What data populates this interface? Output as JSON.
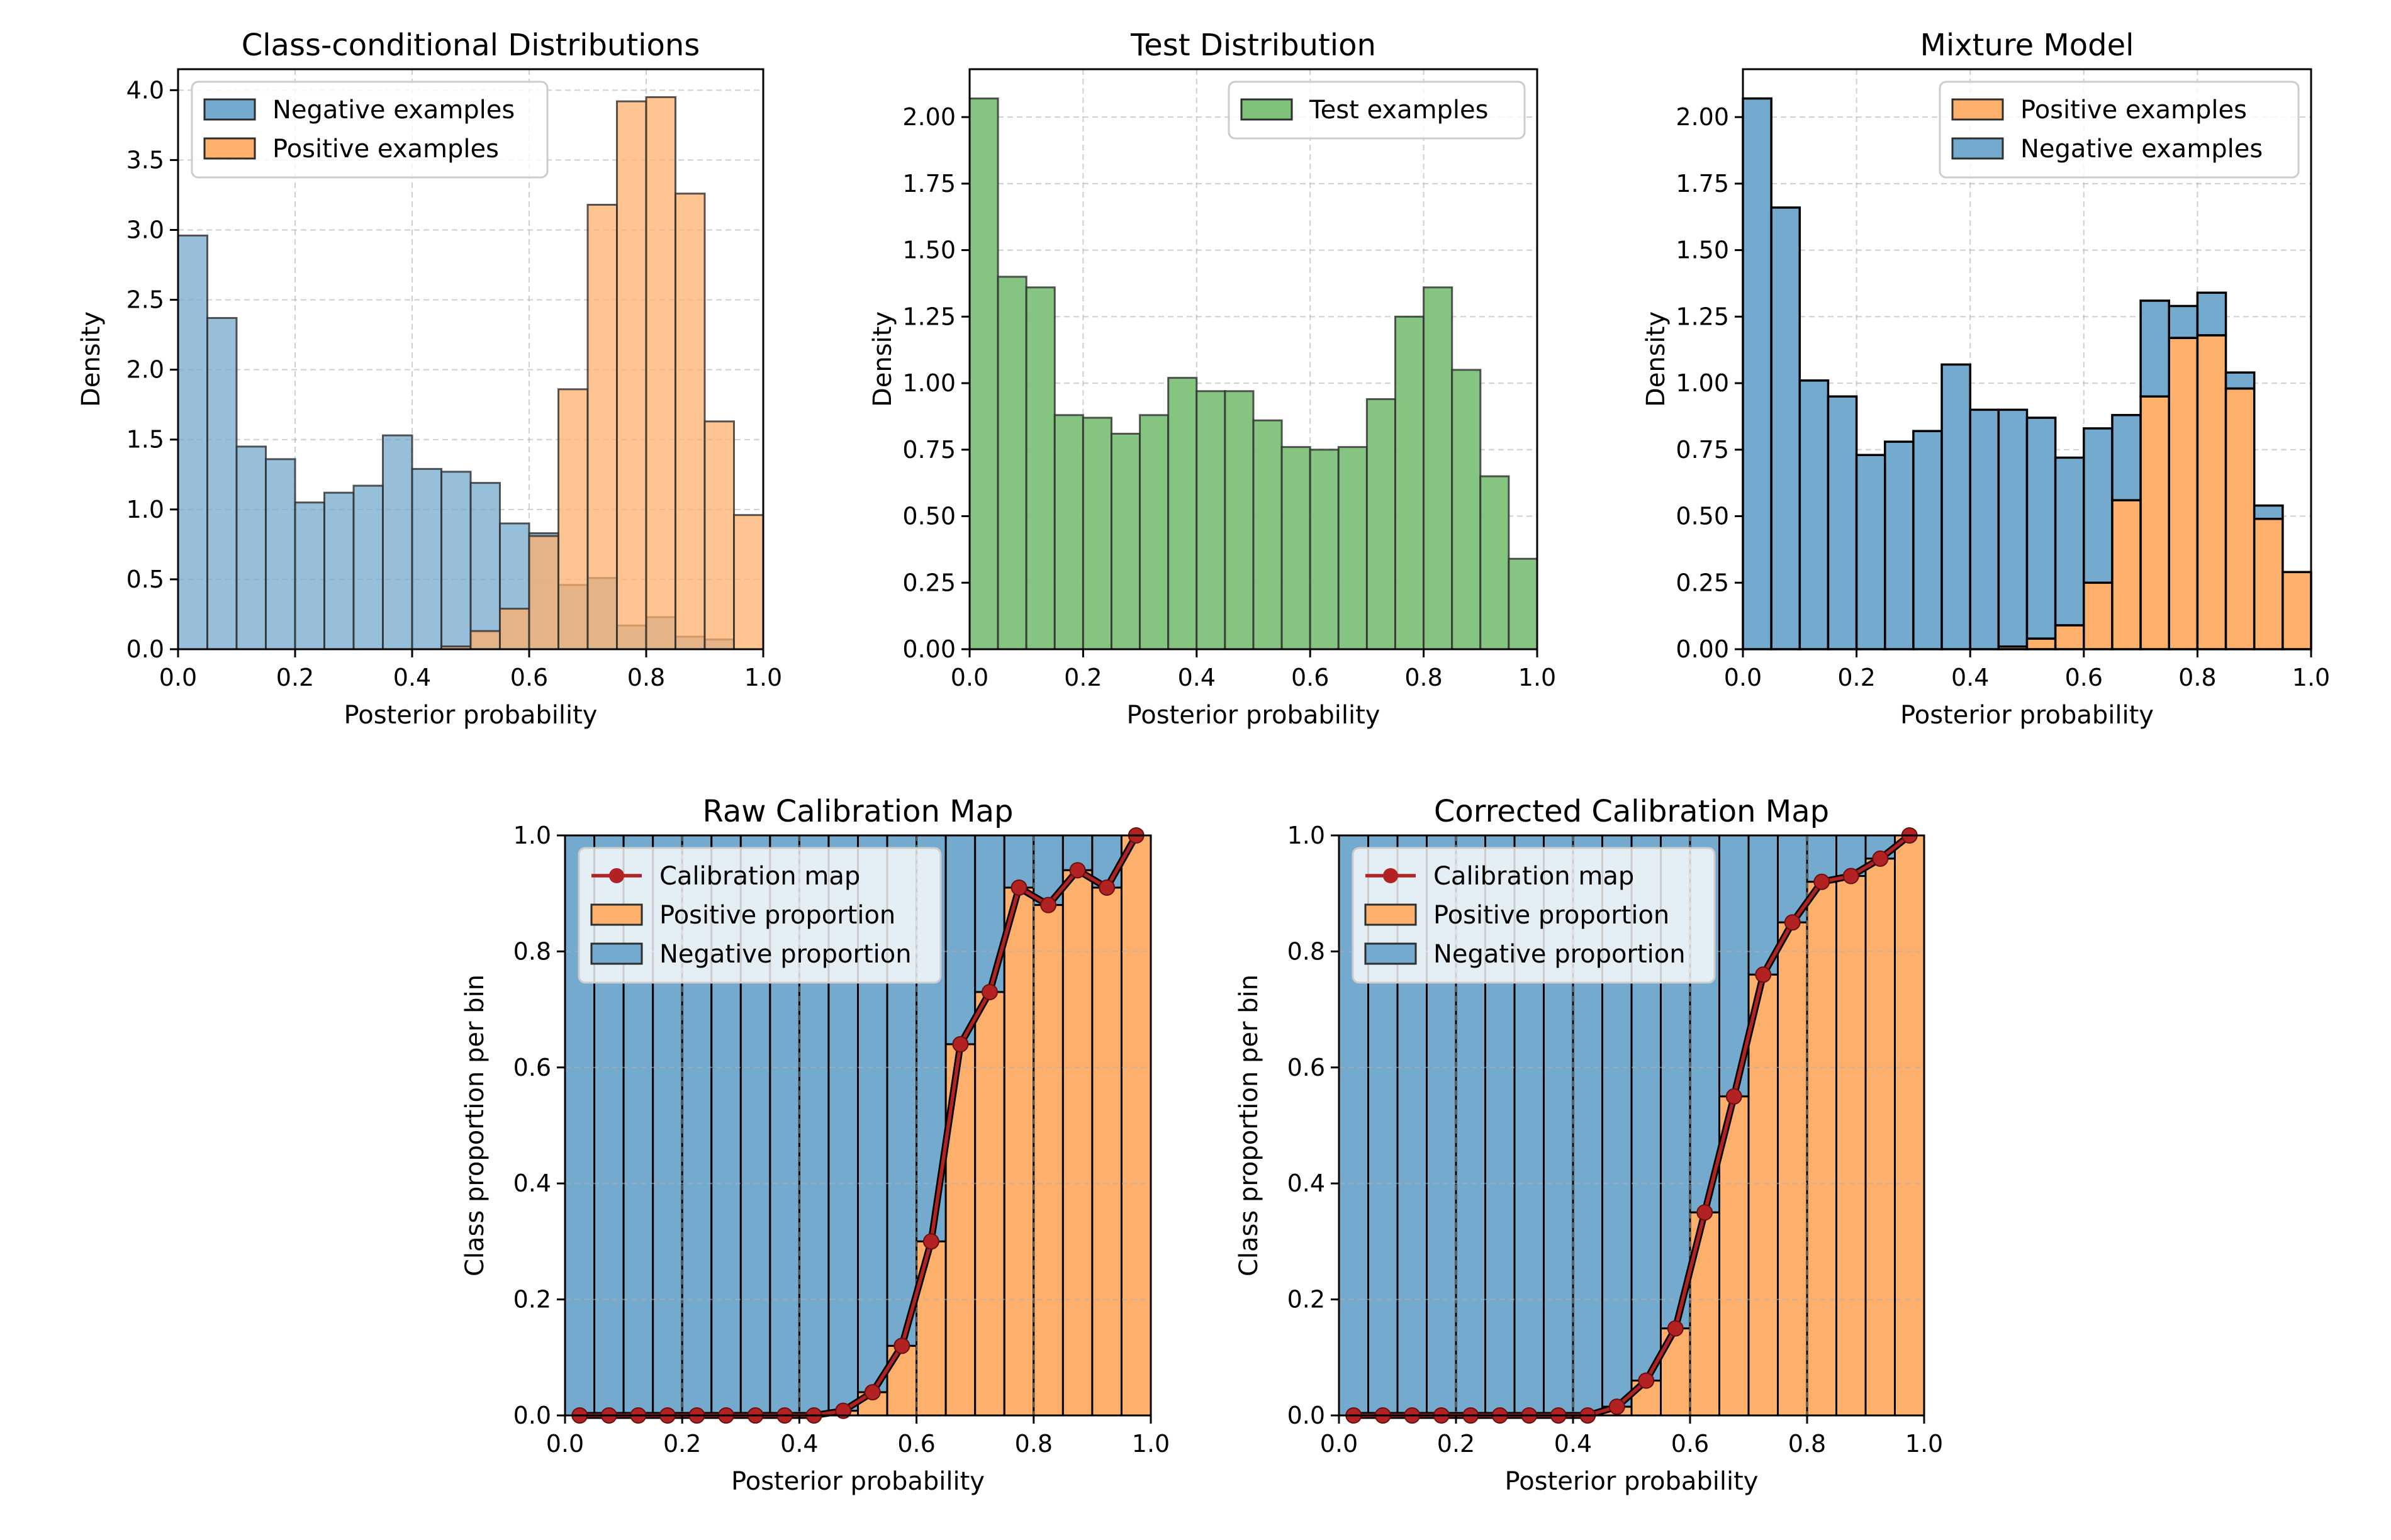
{
  "colors": {
    "negative": "#74aace",
    "positive": "#fdb06c",
    "test": "#80c27a",
    "calibration": "#b22222",
    "edge": "#000000",
    "grid": "#b0b0b0"
  },
  "chart_data": [
    {
      "id": "class-conditional",
      "type": "bar",
      "title": "Class-conditional Distributions",
      "xlabel": "Posterior probability",
      "ylabel": "Density",
      "xlim": [
        0,
        1
      ],
      "ylim": [
        0,
        4.15
      ],
      "xticks": [
        0.0,
        0.2,
        0.4,
        0.6,
        0.8,
        1.0
      ],
      "xtick_labels": [
        "0.0",
        "0.2",
        "0.4",
        "0.6",
        "0.8",
        "1.0"
      ],
      "yticks": [
        0,
        0.5,
        1.0,
        1.5,
        2.0,
        2.5,
        3.0,
        3.5,
        4.0
      ],
      "ytick_labels": [
        "0.0",
        "0.5",
        "1.0",
        "1.5",
        "2.0",
        "2.5",
        "3.0",
        "3.5",
        "4.0"
      ],
      "bins": 20,
      "overlay": true,
      "legend": "top-left",
      "series": [
        {
          "name": "Negative examples",
          "color": "negative",
          "values": [
            2.96,
            2.37,
            1.45,
            1.36,
            1.05,
            1.12,
            1.17,
            1.53,
            1.29,
            1.27,
            1.19,
            0.9,
            0.83,
            0.46,
            0.51,
            0.17,
            0.23,
            0.09,
            0.07,
            0.0
          ]
        },
        {
          "name": "Positive examples",
          "color": "positive",
          "values": [
            0.0,
            0.0,
            0.0,
            0.0,
            0.0,
            0.0,
            0.0,
            0.0,
            0.0,
            0.02,
            0.13,
            0.29,
            0.81,
            1.86,
            3.18,
            3.92,
            3.95,
            3.26,
            1.63,
            0.96
          ]
        }
      ]
    },
    {
      "id": "test-distribution",
      "type": "bar",
      "title": "Test Distribution",
      "xlabel": "Posterior probability",
      "ylabel": "Density",
      "xlim": [
        0,
        1
      ],
      "ylim": [
        0,
        2.18
      ],
      "xticks": [
        0.0,
        0.2,
        0.4,
        0.6,
        0.8,
        1.0
      ],
      "xtick_labels": [
        "0.0",
        "0.2",
        "0.4",
        "0.6",
        "0.8",
        "1.0"
      ],
      "yticks": [
        0,
        0.25,
        0.5,
        0.75,
        1.0,
        1.25,
        1.5,
        1.75,
        2.0
      ],
      "ytick_labels": [
        "0.00",
        "0.25",
        "0.50",
        "0.75",
        "1.00",
        "1.25",
        "1.50",
        "1.75",
        "2.00"
      ],
      "bins": 20,
      "legend": "top-right",
      "series": [
        {
          "name": "Test examples",
          "color": "test",
          "values": [
            2.07,
            1.4,
            1.36,
            0.88,
            0.87,
            0.81,
            0.88,
            1.02,
            0.97,
            0.97,
            0.86,
            0.76,
            0.75,
            0.76,
            0.94,
            1.25,
            1.36,
            1.05,
            0.65,
            0.34
          ]
        }
      ]
    },
    {
      "id": "mixture-model",
      "type": "bar",
      "title": "Mixture Model",
      "xlabel": "Posterior probability",
      "ylabel": "Density",
      "xlim": [
        0,
        1
      ],
      "ylim": [
        0,
        2.18
      ],
      "xticks": [
        0.0,
        0.2,
        0.4,
        0.6,
        0.8,
        1.0
      ],
      "xtick_labels": [
        "0.0",
        "0.2",
        "0.4",
        "0.6",
        "0.8",
        "1.0"
      ],
      "yticks": [
        0,
        0.25,
        0.5,
        0.75,
        1.0,
        1.25,
        1.5,
        1.75,
        2.0
      ],
      "ytick_labels": [
        "0.00",
        "0.25",
        "0.50",
        "0.75",
        "1.00",
        "1.25",
        "1.50",
        "1.75",
        "2.00"
      ],
      "bins": 20,
      "stacked": true,
      "legend": "top-right",
      "series": [
        {
          "name": "Positive examples",
          "color": "positive",
          "values": [
            0.0,
            0.0,
            0.0,
            0.0,
            0.0,
            0.0,
            0.0,
            0.0,
            0.0,
            0.01,
            0.04,
            0.09,
            0.25,
            0.56,
            0.95,
            1.17,
            1.18,
            0.98,
            0.49,
            0.29
          ]
        },
        {
          "name": "Negative examples",
          "color": "negative",
          "values": [
            2.07,
            1.66,
            1.01,
            0.95,
            0.73,
            0.78,
            0.82,
            1.07,
            0.9,
            0.89,
            0.83,
            0.63,
            0.58,
            0.32,
            0.36,
            0.12,
            0.16,
            0.06,
            0.05,
            0.0
          ]
        }
      ]
    },
    {
      "id": "raw-calibration",
      "type": "bar",
      "title": "Raw Calibration Map",
      "xlabel": "Posterior probability",
      "ylabel": "Class proportion per bin",
      "xlim": [
        0,
        1
      ],
      "ylim": [
        0,
        1
      ],
      "xticks": [
        0.0,
        0.2,
        0.4,
        0.6,
        0.8,
        1.0
      ],
      "xtick_labels": [
        "0.0",
        "0.2",
        "0.4",
        "0.6",
        "0.8",
        "1.0"
      ],
      "yticks": [
        0,
        0.2,
        0.4,
        0.6,
        0.8,
        1.0
      ],
      "ytick_labels": [
        "0.0",
        "0.2",
        "0.4",
        "0.6",
        "0.8",
        "1.0"
      ],
      "bins": 20,
      "legend": "top-left",
      "legend_entries": [
        "Calibration map",
        "Positive proportion",
        "Negative proportion"
      ],
      "calibration_x": [
        0.025,
        0.075,
        0.125,
        0.175,
        0.225,
        0.275,
        0.325,
        0.375,
        0.425,
        0.475,
        0.525,
        0.575,
        0.625,
        0.675,
        0.725,
        0.775,
        0.825,
        0.875,
        0.925,
        0.975
      ],
      "positive_proportion": [
        0.0,
        0.0,
        0.0,
        0.0,
        0.0,
        0.0,
        0.0,
        0.0,
        0.0,
        0.008,
        0.04,
        0.12,
        0.3,
        0.64,
        0.73,
        0.91,
        0.88,
        0.94,
        0.91,
        1.0
      ]
    },
    {
      "id": "corrected-calibration",
      "type": "bar",
      "title": "Corrected Calibration Map",
      "xlabel": "Posterior probability",
      "ylabel": "Class proportion per bin",
      "xlim": [
        0,
        1
      ],
      "ylim": [
        0,
        1
      ],
      "xticks": [
        0.0,
        0.2,
        0.4,
        0.6,
        0.8,
        1.0
      ],
      "xtick_labels": [
        "0.0",
        "0.2",
        "0.4",
        "0.6",
        "0.8",
        "1.0"
      ],
      "yticks": [
        0,
        0.2,
        0.4,
        0.6,
        0.8,
        1.0
      ],
      "ytick_labels": [
        "0.0",
        "0.2",
        "0.4",
        "0.6",
        "0.8",
        "1.0"
      ],
      "bins": 20,
      "legend": "top-left",
      "legend_entries": [
        "Calibration map",
        "Positive proportion",
        "Negative proportion"
      ],
      "calibration_x": [
        0.025,
        0.075,
        0.125,
        0.175,
        0.225,
        0.275,
        0.325,
        0.375,
        0.425,
        0.475,
        0.525,
        0.575,
        0.625,
        0.675,
        0.725,
        0.775,
        0.825,
        0.875,
        0.925,
        0.975
      ],
      "positive_proportion": [
        0.0,
        0.0,
        0.0,
        0.0,
        0.0,
        0.0,
        0.0,
        0.0,
        0.0,
        0.015,
        0.06,
        0.15,
        0.35,
        0.55,
        0.76,
        0.85,
        0.92,
        0.93,
        0.96,
        1.0
      ]
    }
  ]
}
